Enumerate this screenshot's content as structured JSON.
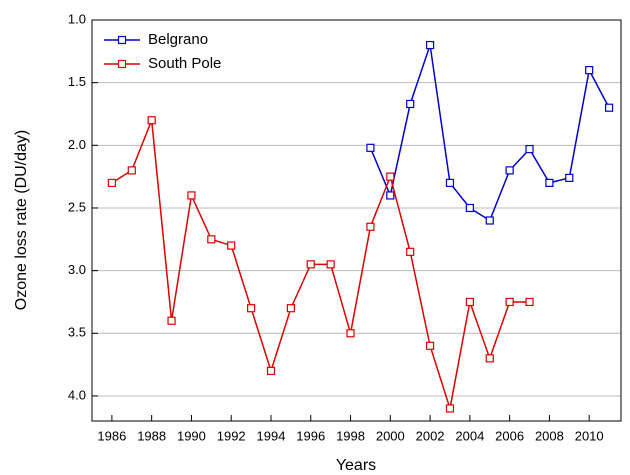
{
  "chart_data": {
    "type": "line",
    "xlabel": "Years",
    "ylabel": "Ozone loss rate (DU/day)",
    "xlim": [
      1985,
      2011.6
    ],
    "xticks": [
      1986,
      1988,
      1990,
      1992,
      1994,
      1996,
      1998,
      2000,
      2002,
      2004,
      2006,
      2008,
      2010
    ],
    "ylim": [
      1.0,
      4.2
    ],
    "y_inverted": true,
    "yticks": [
      {
        "value": 1.0,
        "label": "1.0"
      },
      {
        "value": 1.5,
        "label": "1.5"
      },
      {
        "value": 2.0,
        "label": "2.0"
      },
      {
        "value": 2.5,
        "label": "2.5"
      },
      {
        "value": 3.0,
        "label": "3.0"
      },
      {
        "value": 3.5,
        "label": "3.5"
      },
      {
        "value": 4.0,
        "label": "4.0"
      }
    ],
    "grid": true,
    "legend": "top-left",
    "series": [
      {
        "name": "Belgrano",
        "color": "#0000cc",
        "x": [
          1999,
          2000,
          2001,
          2002,
          2003,
          2004,
          2005,
          2006,
          2007,
          2008,
          2009,
          2010,
          2011
        ],
        "values": [
          2.02,
          2.4,
          1.67,
          1.2,
          2.3,
          2.5,
          2.6,
          2.2,
          2.03,
          2.3,
          2.26,
          1.4,
          1.7
        ]
      },
      {
        "name": "South Pole",
        "color": "#dd0000",
        "x": [
          1986,
          1987,
          1988,
          1989,
          1990,
          1991,
          1992,
          1993,
          1994,
          1995,
          1996,
          1997,
          1998,
          1999,
          2000,
          2001,
          2002,
          2003,
          2004,
          2005,
          2006,
          2007
        ],
        "values": [
          2.3,
          2.2,
          1.8,
          3.4,
          2.4,
          2.75,
          2.8,
          3.3,
          3.8,
          3.3,
          2.95,
          2.95,
          3.5,
          2.65,
          2.25,
          2.85,
          3.6,
          4.1,
          3.25,
          3.7,
          3.25,
          3.25
        ]
      }
    ]
  }
}
